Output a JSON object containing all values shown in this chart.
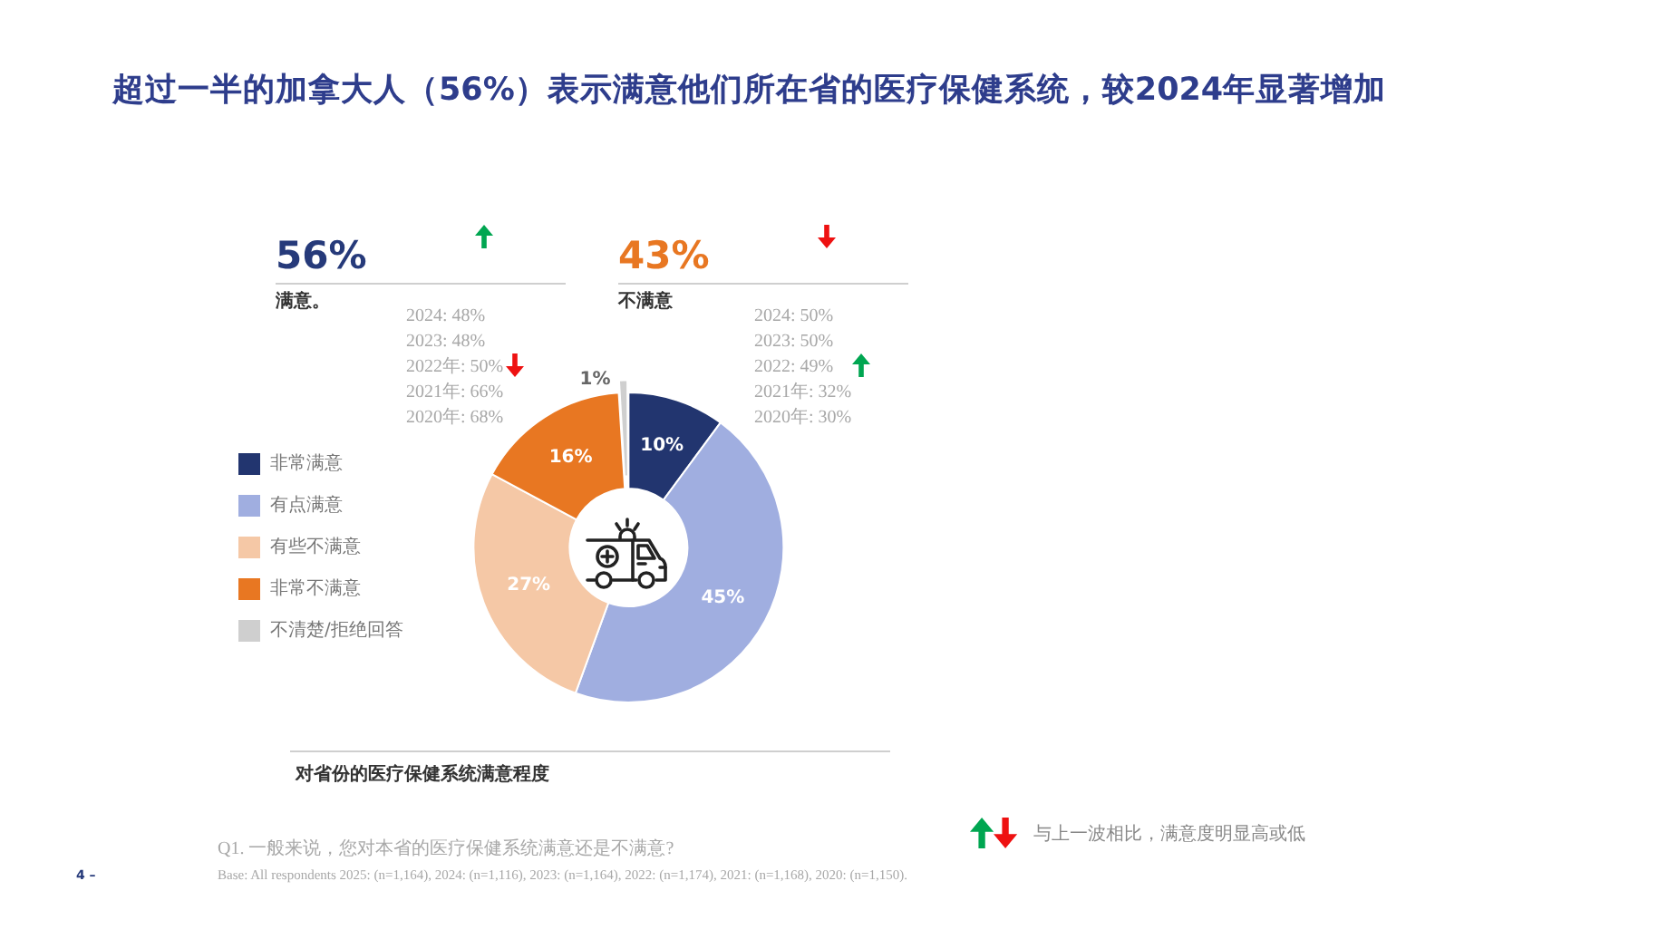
{
  "chart_data": {
    "type": "donut",
    "title": "超过一半的加拿大人（56%）表示满意他们所在省的医疗保健系统，较2024年显著增加",
    "categories": [
      "非常满意",
      "有点满意",
      "有些不满意",
      "非常不满意",
      "不清楚/拒绝回答"
    ],
    "values": [
      10,
      45,
      27,
      16,
      1
    ],
    "colors": [
      "#22356f",
      "#a0aee0",
      "#f5c8a6",
      "#e87722",
      "#cfcfcf"
    ],
    "value_labels": [
      "10%",
      "45%",
      "27%",
      "16%",
      "1%"
    ],
    "legend": "left",
    "annotations": [
      "56%",
      "满意。",
      "2024: 48%",
      "2023: 48%",
      "2022年: 50%",
      "2021年: 66%",
      "2020年: 68%",
      "43%",
      "不满意",
      "2024: 50%",
      "2023: 50%",
      "2022: 49%",
      "2021年: 32%",
      "2020年: 30%",
      "对省份的医疗保健系统满意程度",
      "与上一波相比，满意度明显高或低",
      "Q1. 一般来说，您对本省的医疗保健系统满意还是不满意?",
      "Base: All respondents 2025: (n=1,164), 2024: (n=1,116), 2023: (n=1,164), 2022: (n=1,174), 2021: (n=1,168), 2020: (n=1,150).",
      "4 –"
    ]
  }
}
